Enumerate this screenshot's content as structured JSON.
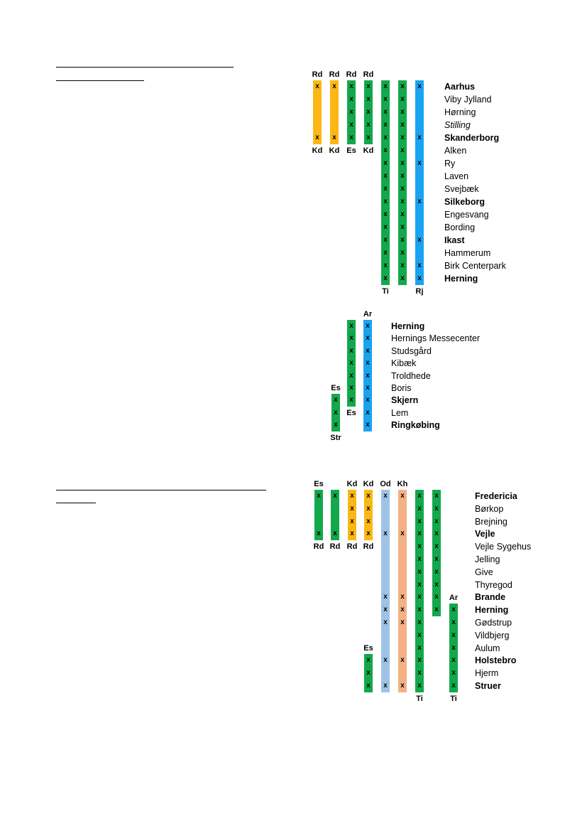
{
  "colors": {
    "yellow": "#fbb814",
    "green": "#12a94c",
    "blue": "#1aa3f0",
    "lightblue": "#9fc3e6",
    "salmon": "#f4b183"
  },
  "panels": [
    {
      "id": "aarhus-herning",
      "stops": [
        {
          "name": "Aarhus",
          "style": "bold"
        },
        {
          "name": "Viby Jylland",
          "style": "normal"
        },
        {
          "name": "Hørning",
          "style": "normal"
        },
        {
          "name": "Stilling",
          "style": "italic"
        },
        {
          "name": "Skanderborg",
          "style": "bold"
        },
        {
          "name": "Alken",
          "style": "normal"
        },
        {
          "name": "Ry",
          "style": "normal"
        },
        {
          "name": "Laven",
          "style": "normal"
        },
        {
          "name": "Svejbæk",
          "style": "normal"
        },
        {
          "name": "Silkeborg",
          "style": "bold"
        },
        {
          "name": "Engesvang",
          "style": "normal"
        },
        {
          "name": "Bording",
          "style": "normal"
        },
        {
          "name": "Ikast",
          "style": "bold"
        },
        {
          "name": "Hammerum",
          "style": "normal"
        },
        {
          "name": "Birk Centerpark",
          "style": "normal"
        },
        {
          "name": "Herning",
          "style": "bold"
        }
      ],
      "columns": [
        {
          "color": "yellow",
          "start": 0,
          "end": 4,
          "marks": [
            0,
            4
          ],
          "top": "Rd",
          "bottom": "Kd"
        },
        {
          "color": "yellow",
          "start": 0,
          "end": 4,
          "marks": [
            0,
            4
          ],
          "top": "Rd",
          "bottom": "Kd"
        },
        {
          "color": "green",
          "start": 0,
          "end": 4,
          "marks": [
            0,
            1,
            2,
            3,
            4
          ],
          "top": "Rd",
          "bottom": "Es"
        },
        {
          "color": "green",
          "start": 0,
          "end": 4,
          "marks": [
            0,
            1,
            2,
            3,
            4
          ],
          "top": "Rd",
          "bottom": "Kd"
        },
        {
          "color": "green",
          "start": 0,
          "end": 15,
          "marks": [
            0,
            1,
            2,
            3,
            4,
            5,
            6,
            7,
            8,
            9,
            10,
            11,
            12,
            13,
            14,
            15
          ],
          "top": "",
          "bottom": "Ti"
        },
        {
          "color": "green",
          "start": 0,
          "end": 15,
          "marks": [
            0,
            1,
            2,
            3,
            4,
            5,
            6,
            7,
            8,
            9,
            10,
            11,
            12,
            13,
            14,
            15
          ],
          "top": "",
          "bottom": ""
        },
        {
          "color": "blue",
          "start": 0,
          "end": 15,
          "marks": [
            0,
            4,
            6,
            9,
            12,
            14,
            15
          ],
          "top": "",
          "bottom": "Rj"
        }
      ]
    },
    {
      "id": "herning-ringkobing",
      "stops": [
        {
          "name": "Herning",
          "style": "bold"
        },
        {
          "name": "Hernings Messecenter",
          "style": "normal"
        },
        {
          "name": "Studsgård",
          "style": "normal"
        },
        {
          "name": "Kibæk",
          "style": "normal"
        },
        {
          "name": "Troldhede",
          "style": "normal"
        },
        {
          "name": "Boris",
          "style": "normal"
        },
        {
          "name": "Skjern",
          "style": "bold"
        },
        {
          "name": "Lem",
          "style": "normal"
        },
        {
          "name": "Ringkøbing",
          "style": "bold"
        }
      ],
      "columns": [
        {
          "color": "green",
          "start": 6,
          "end": 8,
          "marks": [
            6,
            7,
            8
          ],
          "top": "Es",
          "bottom": "Str"
        },
        {
          "color": "green",
          "start": 0,
          "end": 6,
          "marks": [
            0,
            1,
            2,
            3,
            4,
            5,
            6
          ],
          "top": "",
          "bottom": "Es"
        },
        {
          "color": "blue",
          "start": 0,
          "end": 8,
          "marks": [
            0,
            1,
            2,
            3,
            4,
            5,
            6,
            7,
            8
          ],
          "top": "Ar",
          "bottom": ""
        }
      ]
    },
    {
      "id": "fredericia-struer",
      "stops": [
        {
          "name": "Fredericia",
          "style": "bold"
        },
        {
          "name": "Børkop",
          "style": "normal"
        },
        {
          "name": "Brejning",
          "style": "normal"
        },
        {
          "name": "Vejle",
          "style": "bold"
        },
        {
          "name": "Vejle Sygehus",
          "style": "normal"
        },
        {
          "name": "Jelling",
          "style": "normal"
        },
        {
          "name": "Give",
          "style": "normal"
        },
        {
          "name": "Thyregod",
          "style": "normal"
        },
        {
          "name": "Brande",
          "style": "bold"
        },
        {
          "name": "Herning",
          "style": "bold"
        },
        {
          "name": "Gødstrup",
          "style": "normal"
        },
        {
          "name": "Vildbjerg",
          "style": "normal"
        },
        {
          "name": "Aulum",
          "style": "normal"
        },
        {
          "name": "Holstebro",
          "style": "bold"
        },
        {
          "name": "Hjerm",
          "style": "normal"
        },
        {
          "name": "Struer",
          "style": "bold"
        }
      ],
      "columns": [
        {
          "color": "green",
          "start": 0,
          "end": 3,
          "marks": [
            0,
            3
          ],
          "top": "Es",
          "bottom": "Rd"
        },
        {
          "color": "green",
          "start": 0,
          "end": 3,
          "marks": [
            0,
            3
          ],
          "top": "",
          "bottom": "Rd"
        },
        {
          "color": "yellow",
          "start": 0,
          "end": 3,
          "marks": [
            0,
            1,
            2,
            3
          ],
          "top": "Kd",
          "bottom": "Rd"
        },
        {
          "color": "yellow",
          "start": 0,
          "end": 3,
          "marks": [
            0,
            1,
            2,
            3
          ],
          "top": "Kd",
          "bottom": "Rd"
        },
        {
          "color": "green",
          "start": 13,
          "end": 15,
          "marks": [
            13,
            14,
            15
          ],
          "top": "Es",
          "bottom": "",
          "colIndex": 3
        },
        {
          "color": "lightblue",
          "start": 0,
          "end": 15,
          "marks": [
            0,
            3,
            8,
            9,
            10,
            13,
            15
          ],
          "top": "Od",
          "bottom": ""
        },
        {
          "color": "salmon",
          "start": 0,
          "end": 15,
          "marks": [
            0,
            3,
            8,
            9,
            10,
            13,
            15
          ],
          "top": "Kh",
          "bottom": ""
        },
        {
          "color": "green",
          "start": 0,
          "end": 15,
          "marks": [
            0,
            1,
            2,
            3,
            4,
            5,
            6,
            7,
            8,
            9,
            10,
            11,
            12,
            13,
            14,
            15
          ],
          "top": "",
          "bottom": "Ti"
        },
        {
          "color": "green",
          "start": 0,
          "end": 9,
          "marks": [
            0,
            1,
            2,
            3,
            4,
            5,
            6,
            7,
            8,
            9
          ],
          "top": "",
          "bottom": ""
        },
        {
          "color": "green",
          "start": 9,
          "end": 15,
          "marks": [
            9,
            10,
            11,
            12,
            13,
            14,
            15
          ],
          "top": "Ar",
          "bottom": "Ti"
        }
      ]
    }
  ]
}
